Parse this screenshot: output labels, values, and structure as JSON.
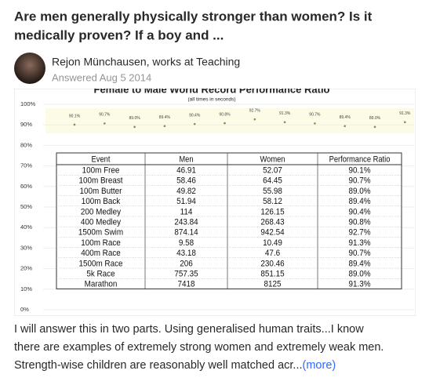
{
  "question": {
    "title_lines": [
      "Are men generally physically stronger than women? Is it",
      "medically proven? If a boy and ..."
    ]
  },
  "author": {
    "name": "Rejon Münchausen, works at Teaching",
    "answered": "Answered Aug 5 2014"
  },
  "image": {
    "chart": {
      "type": "scatter",
      "title": "Female to Male World Record Performance Ratio",
      "subtitle": "(all times in seconds)",
      "values": [
        90.1,
        90.7,
        89.0,
        89.4,
        90.4,
        90.8,
        92.7,
        91.3,
        90.7,
        89.4,
        89.0,
        91.3
      ],
      "value_labels": [
        "90.1%",
        "90.7%",
        "89.0%",
        "89.4%",
        "90.4%",
        "90.8%",
        "92.7%",
        "91.3%",
        "90.7%",
        "89.4%",
        "89.0%",
        "91.3%"
      ],
      "color": "#8a8a5a",
      "ylim": [
        0,
        100
      ],
      "grid": true,
      "yticks": [
        {
          "value": 0,
          "label": "0%"
        },
        {
          "value": 10,
          "label": "10%"
        },
        {
          "value": 20,
          "label": "20%"
        },
        {
          "value": 30,
          "label": "30%"
        },
        {
          "value": 40,
          "label": "40%"
        },
        {
          "value": 50,
          "label": "50%"
        },
        {
          "value": 60,
          "label": "60%"
        },
        {
          "value": 70,
          "label": "70%"
        },
        {
          "value": 80,
          "label": "80%"
        },
        {
          "value": 90,
          "label": "90%"
        },
        {
          "value": 100,
          "label": "100%"
        }
      ]
    },
    "table": {
      "header": [
        "Event",
        "Men",
        "Women",
        "Performance Ratio"
      ],
      "rows": [
        [
          "100m Free",
          "46.91",
          "52.07",
          "90.1%"
        ],
        [
          "100m Breast",
          "58.46",
          "64.45",
          "90.7%"
        ],
        [
          "100m Butter",
          "49.82",
          "55.98",
          "89.0%"
        ],
        [
          "100m Back",
          "51.94",
          "58.12",
          "89.4%"
        ],
        [
          "200 Medley",
          "114",
          "126.15",
          "90.4%"
        ],
        [
          "400 Medley",
          "243.84",
          "268.43",
          "90.8%"
        ],
        [
          "1500m Swim",
          "874.14",
          "942.54",
          "92.7%"
        ],
        [
          "100m Race",
          "9.58",
          "10.49",
          "91.3%"
        ],
        [
          "400m Race",
          "43.18",
          "47.6",
          "90.7%"
        ],
        [
          "1500m Race",
          "206",
          "230.46",
          "89.4%"
        ],
        [
          "5k Race",
          "757.35",
          "851.15",
          "89.0%"
        ],
        [
          "Marathon",
          "7418",
          "8125",
          "91.3%"
        ]
      ]
    }
  },
  "answer": {
    "lines": [
      "I will answer this in two parts. Using generalised human traits...I know",
      "there are examples of extremely strong women and extremely weak men.",
      "Strength-wise children are reasonably well matched acr..."
    ],
    "more": "(more)"
  }
}
